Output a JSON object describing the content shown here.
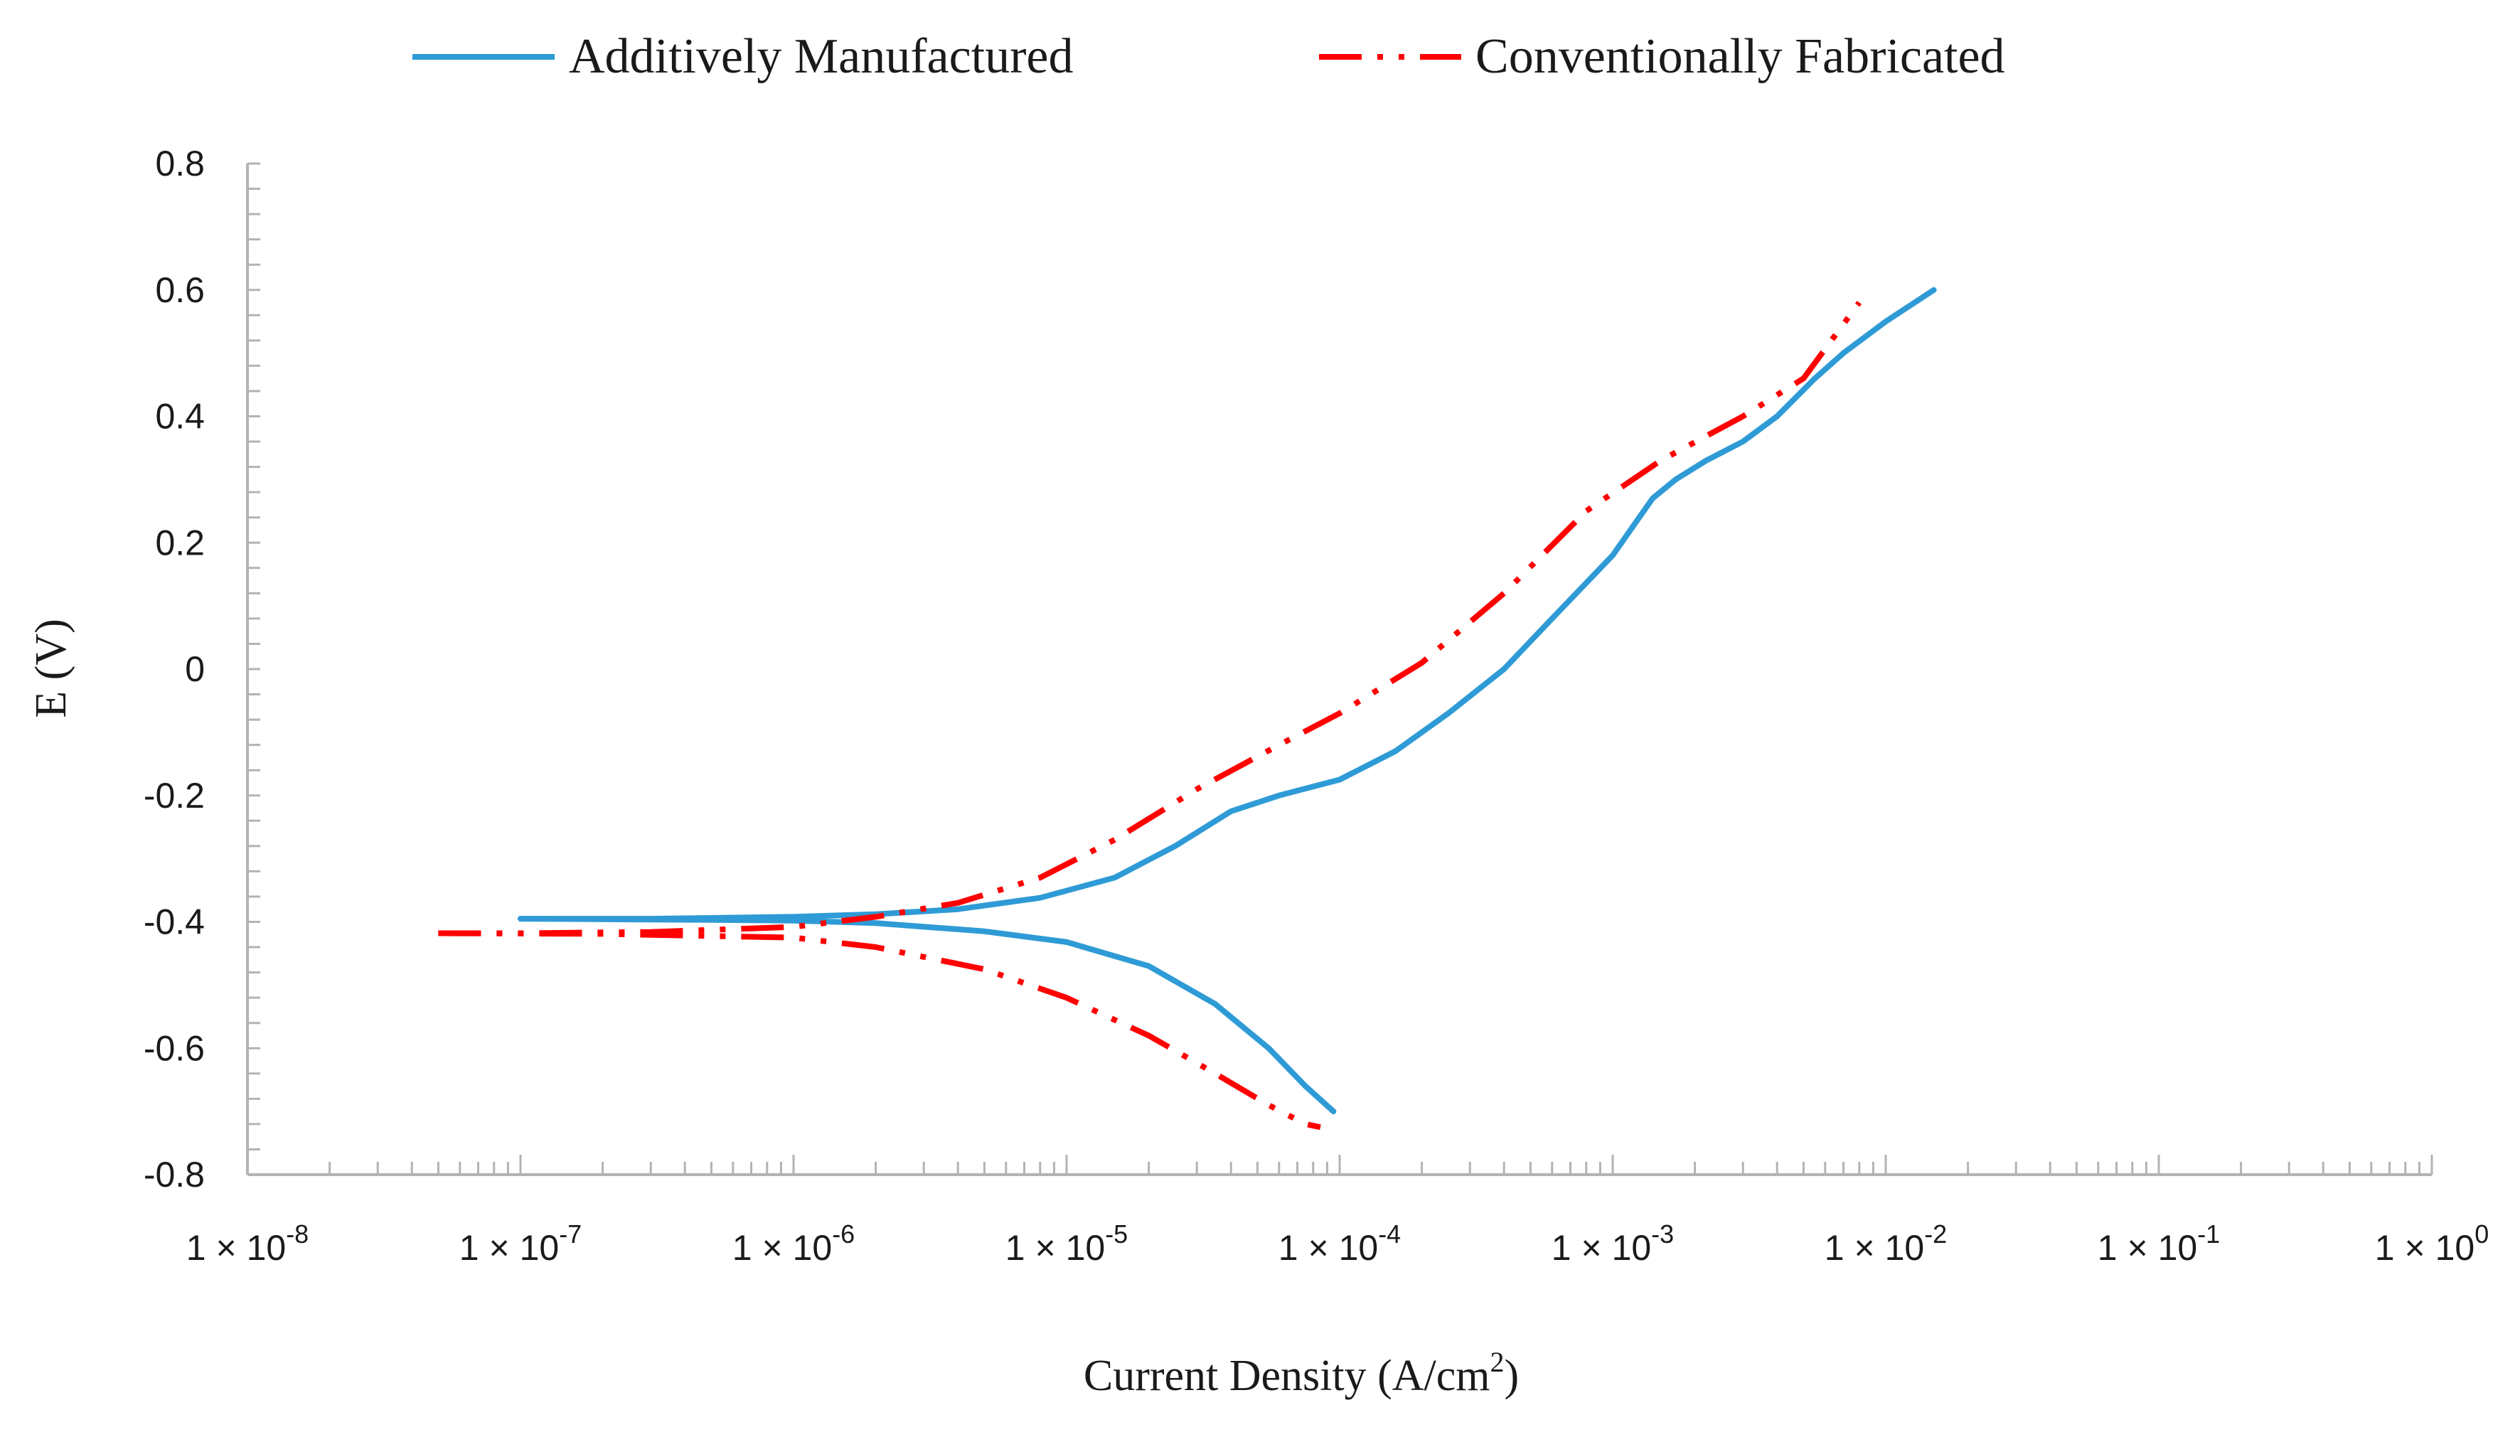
{
  "chart_data": {
    "type": "line",
    "title": "",
    "xlabel": "Current Density (A/cm2)",
    "xlabel_base": "Current Density (A/cm",
    "xlabel_sup": "2",
    "xlabel_tail": ")",
    "ylabel": "E (V)",
    "xscale": "log",
    "xlim": [
      1e-08,
      1
    ],
    "ylim": [
      -0.8,
      0.8
    ],
    "grid": false,
    "legend_position": "top",
    "y_ticks": [
      {
        "value": 0.8,
        "label": "0.8"
      },
      {
        "value": 0.6,
        "label": "0.6"
      },
      {
        "value": 0.4,
        "label": "0.4"
      },
      {
        "value": 0.2,
        "label": "0.2"
      },
      {
        "value": 0,
        "label": "0"
      },
      {
        "value": -0.2,
        "label": "-0.2"
      },
      {
        "value": -0.4,
        "label": "-0.4"
      },
      {
        "value": -0.6,
        "label": "-0.6"
      },
      {
        "value": -0.8,
        "label": "-0.8"
      }
    ],
    "x_ticks": [
      {
        "exponent": -8,
        "base": "1 × 10",
        "exp": "-8"
      },
      {
        "exponent": -7,
        "base": "1 × 10",
        "exp": "-7"
      },
      {
        "exponent": -6,
        "base": "1 × 10",
        "exp": "-6"
      },
      {
        "exponent": -5,
        "base": "1 × 10",
        "exp": "-5"
      },
      {
        "exponent": -4,
        "base": "1 × 10",
        "exp": "-4"
      },
      {
        "exponent": -3,
        "base": "1 × 10",
        "exp": "-3"
      },
      {
        "exponent": -2,
        "base": "1 × 10",
        "exp": "-2"
      },
      {
        "exponent": -1,
        "base": "1 × 10",
        "exp": "-1"
      },
      {
        "exponent": 0,
        "base": "1 × 10",
        "exp": "0"
      }
    ],
    "series": [
      {
        "name": "Additively Manufactured",
        "color": "#2E9BD6",
        "dash": "solid",
        "anodic": [
          [
            1e-07,
            -0.395
          ],
          [
            3e-07,
            -0.395
          ],
          [
            1e-06,
            -0.392
          ],
          [
            2e-06,
            -0.388
          ],
          [
            4e-06,
            -0.38
          ],
          [
            8e-06,
            -0.362
          ],
          [
            1.5e-05,
            -0.33
          ],
          [
            2.5e-05,
            -0.28
          ],
          [
            4e-05,
            -0.225
          ],
          [
            6e-05,
            -0.2
          ],
          [
            0.0001,
            -0.175
          ],
          [
            0.00016,
            -0.13
          ],
          [
            0.00025,
            -0.07
          ],
          [
            0.0004,
            0.0
          ],
          [
            0.0006,
            0.08
          ],
          [
            0.001,
            0.18
          ],
          [
            0.0014,
            0.27
          ],
          [
            0.0017,
            0.3
          ],
          [
            0.0022,
            0.33
          ],
          [
            0.003,
            0.36
          ],
          [
            0.004,
            0.4
          ],
          [
            0.0055,
            0.46
          ],
          [
            0.007,
            0.5
          ],
          [
            0.01,
            0.55
          ],
          [
            0.015,
            0.6
          ]
        ],
        "cathodic": [
          [
            1e-07,
            -0.395
          ],
          [
            5e-07,
            -0.397
          ],
          [
            1e-06,
            -0.398
          ],
          [
            2e-06,
            -0.402
          ],
          [
            5e-06,
            -0.415
          ],
          [
            1e-05,
            -0.432
          ],
          [
            2e-05,
            -0.47
          ],
          [
            3.5e-05,
            -0.53
          ],
          [
            5.5e-05,
            -0.6
          ],
          [
            7.5e-05,
            -0.66
          ],
          [
            9.5e-05,
            -0.7
          ]
        ]
      },
      {
        "name": "Conventionally Fabricated",
        "color": "#FF0000",
        "dash": "dash-dot-dot",
        "anodic": [
          [
            5e-08,
            -0.418
          ],
          [
            1e-07,
            -0.418
          ],
          [
            3e-07,
            -0.416
          ],
          [
            1e-06,
            -0.408
          ],
          [
            2e-06,
            -0.392
          ],
          [
            4e-06,
            -0.37
          ],
          [
            8e-06,
            -0.33
          ],
          [
            1.5e-05,
            -0.27
          ],
          [
            3e-05,
            -0.19
          ],
          [
            6e-05,
            -0.12
          ],
          [
            0.0001,
            -0.07
          ],
          [
            0.0002,
            0.01
          ],
          [
            0.0004,
            0.12
          ],
          [
            0.0008,
            0.25
          ],
          [
            0.0015,
            0.33
          ],
          [
            0.003,
            0.4
          ],
          [
            0.005,
            0.46
          ],
          [
            0.008,
            0.58
          ]
        ],
        "cathodic": [
          [
            5e-08,
            -0.418
          ],
          [
            2e-07,
            -0.419
          ],
          [
            1e-06,
            -0.425
          ],
          [
            2e-06,
            -0.44
          ],
          [
            5e-06,
            -0.475
          ],
          [
            1e-05,
            -0.52
          ],
          [
            2e-05,
            -0.58
          ],
          [
            3.5e-05,
            -0.64
          ],
          [
            5.5e-05,
            -0.69
          ],
          [
            7.5e-05,
            -0.72
          ],
          [
            8.5e-05,
            -0.725
          ]
        ]
      }
    ]
  }
}
